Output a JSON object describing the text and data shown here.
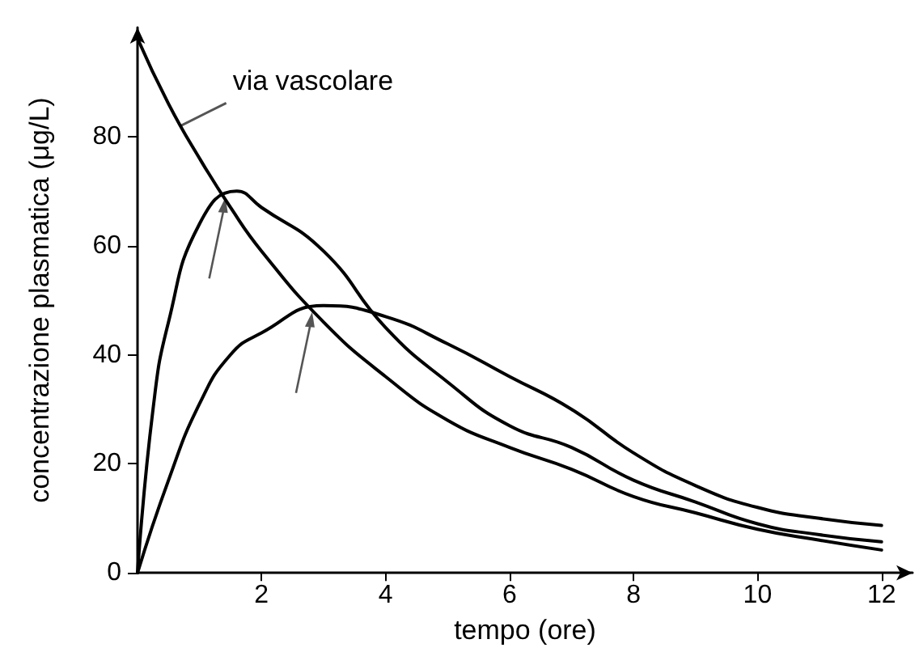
{
  "chart_data": {
    "type": "line",
    "xlabel": "tempo (ore)",
    "ylabel": "concentrazione plasmatica (μg/L)",
    "xlim": [
      0,
      12.5
    ],
    "ylim": [
      0,
      100
    ],
    "xticks": [
      2,
      4,
      6,
      8,
      10,
      12
    ],
    "yticks": [
      0,
      20,
      40,
      60,
      80
    ],
    "grid": false,
    "marker": "none",
    "line_style": "solid",
    "series": [
      {
        "color": "#000000",
        "x": [
          0,
          0.5,
          1,
          1.5,
          2,
          3,
          4,
          5,
          6,
          7,
          8,
          9,
          10,
          11,
          12
        ],
        "values": [
          98,
          86,
          76,
          67,
          59,
          46,
          36,
          28,
          23,
          19,
          14,
          11,
          8,
          6,
          4.2
        ]
      },
      {
        "color": "#000000",
        "x": [
          0,
          0.25,
          0.5,
          1,
          1.6,
          2,
          3,
          4,
          5,
          6,
          7,
          8,
          9,
          10,
          11,
          12
        ],
        "values": [
          0,
          30,
          46,
          64,
          70,
          67,
          59,
          45,
          35,
          27,
          23,
          17,
          13,
          9,
          7,
          5.7
        ]
      },
      {
        "color": "#000000",
        "x": [
          0,
          0.5,
          1,
          1.5,
          2,
          3,
          4,
          5,
          6,
          7,
          8,
          9,
          10,
          11,
          12
        ],
        "values": [
          0,
          17,
          31,
          40,
          44,
          49,
          47,
          42,
          36,
          30,
          22,
          16,
          12,
          10,
          8.7
        ]
      }
    ],
    "annotations": [
      {
        "text": "via vascolare",
        "x": 0.7,
        "y": 82
      }
    ]
  }
}
